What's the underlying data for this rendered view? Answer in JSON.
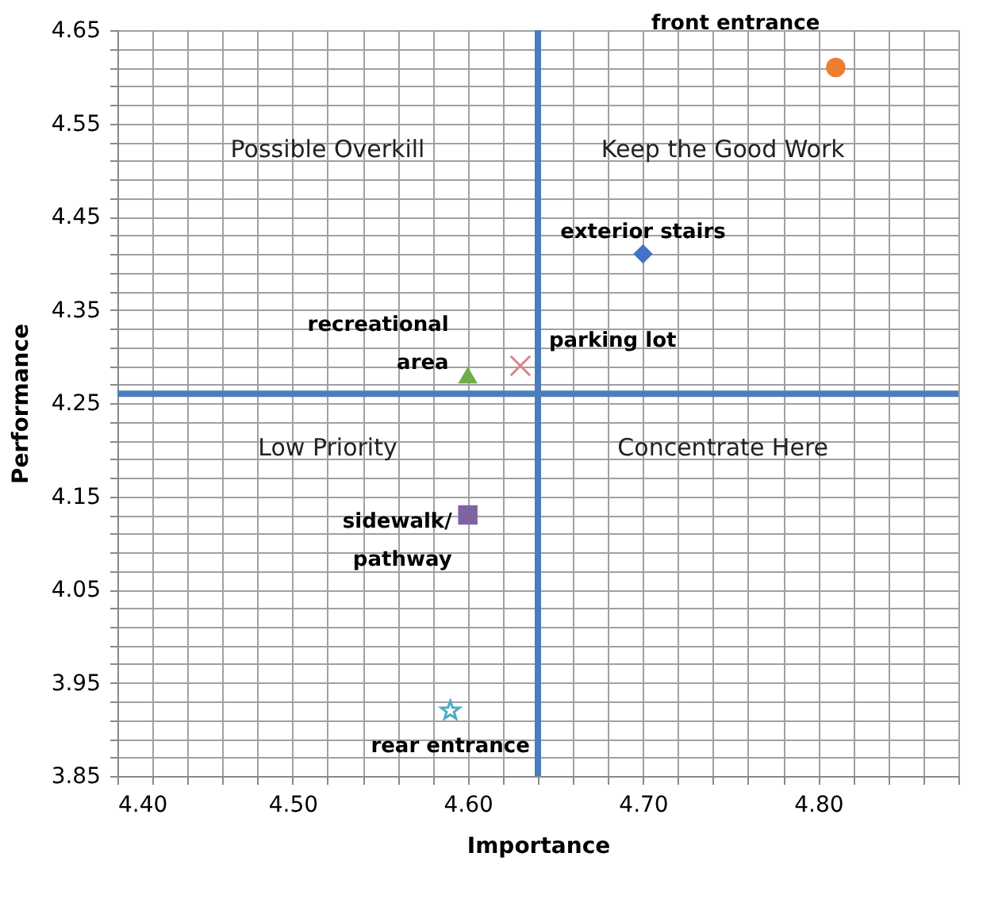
{
  "chart_data": {
    "type": "scatter",
    "xlabel": "Importance",
    "ylabel": "Performance",
    "xlim": [
      4.4,
      4.88
    ],
    "ylim": [
      3.85,
      4.65
    ],
    "xticks": [
      {
        "value": 4.4,
        "label": "4.40"
      },
      {
        "value": 4.42,
        "label": null
      },
      {
        "value": 4.44,
        "label": null
      },
      {
        "value": 4.46,
        "label": null
      },
      {
        "value": 4.48,
        "label": null
      },
      {
        "value": 4.5,
        "label": "4.50"
      },
      {
        "value": 4.52,
        "label": null
      },
      {
        "value": 4.54,
        "label": null
      },
      {
        "value": 4.56,
        "label": null
      },
      {
        "value": 4.58,
        "label": null
      },
      {
        "value": 4.6,
        "label": "4.60"
      },
      {
        "value": 4.62,
        "label": null
      },
      {
        "value": 4.64,
        "label": null
      },
      {
        "value": 4.66,
        "label": null
      },
      {
        "value": 4.68,
        "label": null
      },
      {
        "value": 4.7,
        "label": "4.70"
      },
      {
        "value": 4.72,
        "label": null
      },
      {
        "value": 4.74,
        "label": null
      },
      {
        "value": 4.76,
        "label": null
      },
      {
        "value": 4.78,
        "label": null
      },
      {
        "value": 4.8,
        "label": "4.80"
      },
      {
        "value": 4.82,
        "label": null
      },
      {
        "value": 4.84,
        "label": null
      },
      {
        "value": 4.86,
        "label": null
      },
      {
        "value": 4.88,
        "label": null
      }
    ],
    "yticks": [
      3.85,
      {
        "value": 3.87,
        "label": null
      },
      {
        "value": 3.89,
        "label": null
      },
      {
        "value": 3.91,
        "label": null
      },
      {
        "value": 3.93,
        "label": null
      },
      3.95,
      {
        "value": 3.97,
        "label": null
      },
      {
        "value": 3.99,
        "label": null
      },
      {
        "value": 4.01,
        "label": null
      },
      {
        "value": 4.03,
        "label": null
      },
      4.05,
      {
        "value": 4.07,
        "label": null
      },
      {
        "value": 4.09,
        "label": null
      },
      {
        "value": 4.11,
        "label": null
      },
      {
        "value": 4.13,
        "label": null
      },
      4.15,
      {
        "value": 4.17,
        "label": null
      },
      {
        "value": 4.19,
        "label": null
      },
      {
        "value": 4.21,
        "label": null
      },
      {
        "value": 4.23,
        "label": null
      },
      4.25,
      {
        "value": 4.27,
        "label": null
      },
      {
        "value": 4.29,
        "label": null
      },
      {
        "value": 4.31,
        "label": null
      },
      {
        "value": 4.33,
        "label": null
      },
      4.35,
      {
        "value": 4.37,
        "label": null
      },
      {
        "value": 4.39,
        "label": null
      },
      {
        "value": 4.41,
        "label": null
      },
      {
        "value": 4.43,
        "label": null
      },
      4.45,
      {
        "value": 4.47,
        "label": null
      },
      {
        "value": 4.49,
        "label": null
      },
      {
        "value": 4.51,
        "label": null
      },
      {
        "value": 4.53,
        "label": null
      },
      4.55,
      {
        "value": 4.57,
        "label": null
      },
      {
        "value": 4.59,
        "label": null
      },
      {
        "value": 4.61,
        "label": null
      },
      {
        "value": 4.63,
        "label": null
      },
      4.65
    ],
    "grid": true,
    "series": [
      {
        "name": "front entrance",
        "color": "#ed7d31",
        "marker": "circle",
        "x": [
          4.81
        ],
        "values": [
          4.61
        ]
      },
      {
        "name": "exterior  stairs",
        "color": "#4472c4",
        "marker": "diamond",
        "x": [
          4.7
        ],
        "values": [
          4.41
        ]
      },
      {
        "name": "recreational area",
        "color": "#70ad47",
        "marker": "triangle",
        "x": [
          4.6
        ],
        "values": [
          4.28
        ]
      },
      {
        "name": "parking lot",
        "color": "#d9848a",
        "marker": "cross",
        "x": [
          4.63
        ],
        "values": [
          4.29
        ]
      },
      {
        "name": "sidewalk/ pathway",
        "color": "#8064a2",
        "marker": "square",
        "x": [
          4.6
        ],
        "values": [
          4.13
        ]
      },
      {
        "name": "rear entrance",
        "color": "#4bacc6",
        "marker": "star",
        "x": [
          4.59
        ],
        "values": [
          3.92
        ]
      }
    ],
    "ref_lines": [
      {
        "axis": "x",
        "value": 4.64,
        "label": null,
        "color": "#4a7ebb"
      },
      {
        "axis": "y",
        "value": 4.26,
        "label": null,
        "color": "#4a7ebb"
      }
    ],
    "annotations": [
      "Possible Overkill",
      "Keep the Good Work",
      "Low Priority",
      "Concentrate Here"
    ]
  }
}
